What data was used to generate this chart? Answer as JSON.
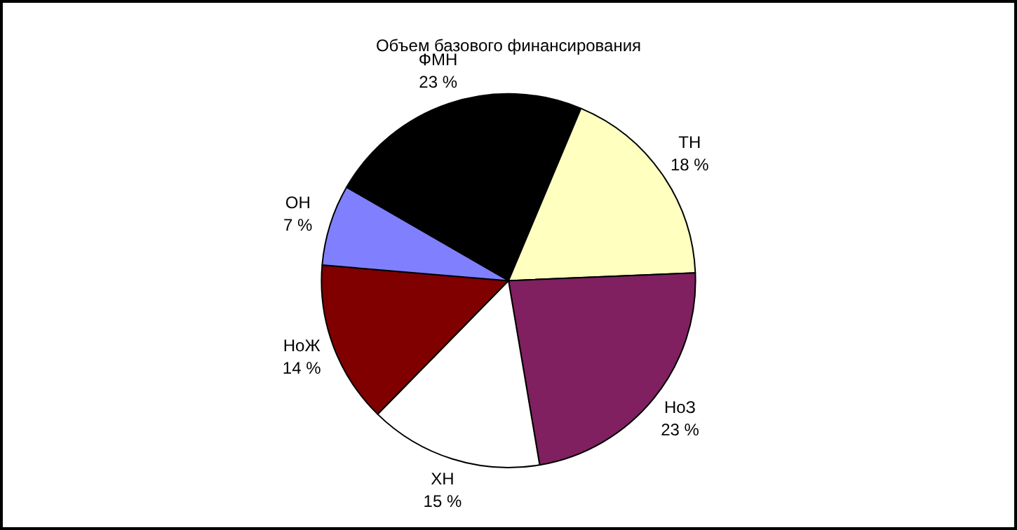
{
  "chart_data": {
    "type": "pie",
    "title": "Объем базового финансирования",
    "categories": [
      "ФМН",
      "ТН",
      "НоЗ",
      "ХН",
      "НоЖ",
      "ОН"
    ],
    "values": [
      23,
      18,
      23,
      15,
      14,
      7
    ],
    "value_labels": [
      "23 %",
      "18 %",
      "23 %",
      "15 %",
      "14 %",
      "7 %"
    ],
    "colors": [
      "#000000",
      "#ffffc0",
      "#802060",
      "#ffffff",
      "#800000",
      "#8080ff"
    ],
    "legend": false
  }
}
